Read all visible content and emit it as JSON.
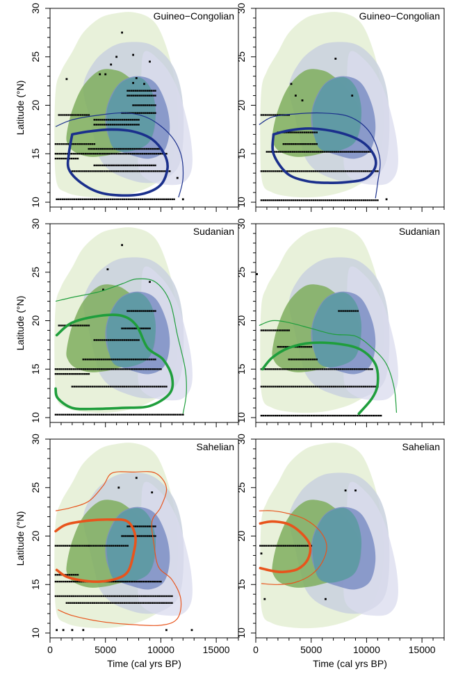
{
  "figure": {
    "colors": {
      "light_green": "#e6efd6",
      "mid_blue_gray": "#c9d1de",
      "light_lavender": "#d9dbed",
      "green": "#7fae5e",
      "blue": "#7d8ec4",
      "teal_overlap": "#5f9aa3",
      "dark_blue_curve": "#1a2f8c",
      "green_curve": "#1f9e3c",
      "orange_curve": "#e8541c"
    },
    "x_ticks": [
      "0",
      "5000",
      "10000",
      "15000"
    ],
    "y_ticks": [
      "10",
      "15",
      "20",
      "25",
      "30"
    ]
  },
  "chart_data": [
    {
      "type": "scatter",
      "title": "Guineo−Congolian",
      "xlabel": "",
      "ylabel": "Latitude (°N)",
      "xlim": [
        0,
        17000
      ],
      "ylim": [
        9.5,
        30
      ],
      "curve_color": "dark_blue_curve",
      "show_xlabel": false,
      "show_ylabel": true
    },
    {
      "type": "scatter",
      "title": "Guineo−Congolian",
      "xlabel": "",
      "ylabel": "",
      "xlim": [
        0,
        17000
      ],
      "ylim": [
        9.5,
        30
      ],
      "curve_color": "dark_blue_curve",
      "show_xlabel": false,
      "show_ylabel": false
    },
    {
      "type": "scatter",
      "title": "Sudanian",
      "xlabel": "",
      "ylabel": "Latitude (°N)",
      "xlim": [
        0,
        17000
      ],
      "ylim": [
        9.5,
        30
      ],
      "curve_color": "green_curve",
      "show_xlabel": false,
      "show_ylabel": true
    },
    {
      "type": "scatter",
      "title": "Sudanian",
      "xlabel": "",
      "ylabel": "",
      "xlim": [
        0,
        17000
      ],
      "ylim": [
        9.5,
        30
      ],
      "curve_color": "green_curve",
      "show_xlabel": false,
      "show_ylabel": false
    },
    {
      "type": "scatter",
      "title": "Sahelian",
      "xlabel": "Time (cal yrs BP)",
      "ylabel": "Latitude (°N)",
      "xlim": [
        0,
        17000
      ],
      "ylim": [
        9.5,
        30
      ],
      "curve_color": "orange_curve",
      "show_xlabel": true,
      "show_ylabel": true
    },
    {
      "type": "scatter",
      "title": "Sahelian",
      "xlabel": "Time (cal yrs BP)",
      "ylabel": "",
      "xlim": [
        0,
        17000
      ],
      "ylim": [
        9.5,
        30
      ],
      "curve_color": "orange_curve",
      "show_xlabel": true,
      "show_ylabel": false
    }
  ]
}
